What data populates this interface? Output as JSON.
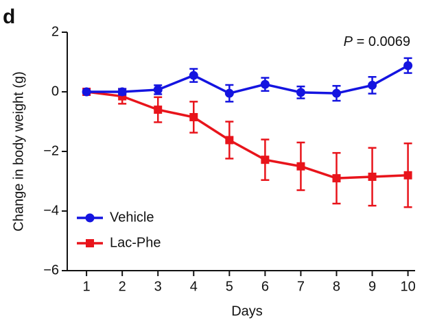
{
  "chart_data": {
    "type": "line",
    "panel_label": "d",
    "annotation": {
      "variable": "P",
      "text": "= 0.0069"
    },
    "xlabel": "Days",
    "ylabel": "Change in body weight (g)",
    "x": [
      1,
      2,
      3,
      4,
      5,
      6,
      7,
      8,
      9,
      10
    ],
    "xlim": [
      0.46,
      10.2
    ],
    "xticks": [
      1,
      2,
      3,
      4,
      5,
      6,
      7,
      8,
      9,
      10
    ],
    "ylim": [
      -6,
      2
    ],
    "yticks": [
      {
        "value": -6,
        "label": "−6"
      },
      {
        "value": -4,
        "label": "−4"
      },
      {
        "value": -2,
        "label": "−2"
      },
      0,
      2
    ],
    "legend": "lower left",
    "series": [
      {
        "name": "Vehicle",
        "color": "#1414e0",
        "marker": "circle",
        "values": [
          0,
          0,
          0.07,
          0.55,
          -0.05,
          0.25,
          -0.02,
          -0.05,
          0.22,
          0.88
        ],
        "errors": [
          0,
          0.1,
          0.15,
          0.22,
          0.28,
          0.22,
          0.2,
          0.25,
          0.28,
          0.25
        ]
      },
      {
        "name": "Lac-Phe",
        "color": "#e8141b",
        "marker": "square",
        "values": [
          0,
          -0.15,
          -0.6,
          -0.85,
          -1.62,
          -2.28,
          -2.5,
          -2.9,
          -2.85,
          -2.8
        ],
        "errors": [
          0,
          0.25,
          0.42,
          0.52,
          0.62,
          0.68,
          0.8,
          0.85,
          0.97,
          1.07
        ]
      }
    ]
  }
}
